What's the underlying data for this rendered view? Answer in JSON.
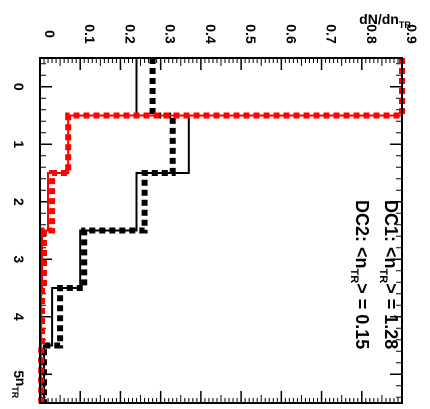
{
  "chart_data": {
    "type": "line",
    "subtype": "step-histogram",
    "orientation": "rotated-90-clockwise",
    "title": "",
    "xlabel": "n_TR",
    "ylabel": "dN/dn_TR",
    "xlim": [
      -0.5,
      5.5
    ],
    "ylim": [
      0,
      0.9
    ],
    "x_ticks": [
      "0",
      "1",
      "2",
      "3",
      "4",
      "5"
    ],
    "y_ticks": [
      "0",
      "0.1",
      "0.2",
      "0.3",
      "0.4",
      "0.5",
      "0.6",
      "0.7",
      "0.8",
      "0.9"
    ],
    "bin_edges": [
      -0.5,
      0.5,
      1.5,
      2.5,
      3.5,
      4.5,
      5.5
    ],
    "series": [
      {
        "color": "#000000",
        "style": "solid",
        "values": [
          0.24,
          0.37,
          0.24,
          0.1,
          0.03,
          0.01
        ]
      },
      {
        "color": "#000000",
        "style": "dashed",
        "values": [
          0.28,
          0.33,
          0.26,
          0.11,
          0.05,
          0.01
        ]
      },
      {
        "color": "#ff0000",
        "style": "solid",
        "values": [
          0.9,
          0.07,
          0.02,
          0.005,
          0.003,
          0.002
        ]
      },
      {
        "color": "#ff0000",
        "style": "dashed",
        "values": [
          0.9,
          0.07,
          0.03,
          0.01,
          0.005,
          0.003
        ]
      }
    ],
    "annotations": [
      {
        "prefix": "DC1: <n",
        "sub": "TR",
        "suffix": "> = 1.28"
      },
      {
        "prefix": "DC2: <n",
        "sub": "TR",
        "suffix": "> = 0.15"
      }
    ],
    "grid": false,
    "legend": "none"
  }
}
